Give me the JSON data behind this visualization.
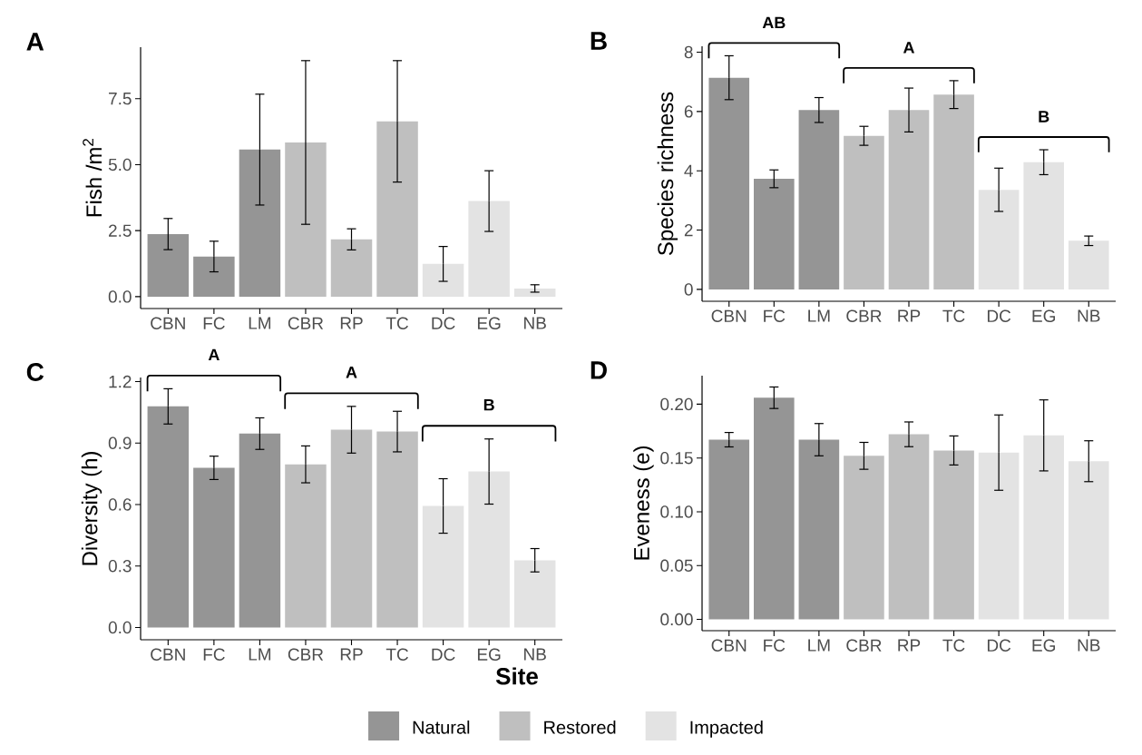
{
  "chart_data": [
    {
      "type": "bar",
      "title": "A",
      "ylabel": "Fish /m$^{2}$",
      "categories": [
        "CBN",
        "FC",
        "LM",
        "CBR",
        "RP",
        "TC",
        "DC",
        "EG",
        "NB"
      ],
      "ylim": [
        -0.45,
        9.45
      ],
      "yticks": [
        {
          "value": 0,
          "label": "0.0"
        },
        {
          "value": 2.5,
          "label": "2.5"
        },
        {
          "value": 5,
          "label": "5.0"
        },
        {
          "value": 7.5,
          "label": "7.5"
        }
      ],
      "series": [
        {
          "color": "#959595",
          "values": [
            2.37,
            1.52,
            5.57,
            null,
            null,
            null,
            null,
            null,
            null
          ],
          "errors": [
            0.59,
            0.58,
            2.1,
            null,
            null,
            null,
            null,
            null,
            null
          ]
        },
        {
          "color": "#bfbfbf",
          "values": [
            null,
            null,
            null,
            5.84,
            2.17,
            6.64,
            null,
            null,
            null
          ],
          "errors": [
            null,
            null,
            null,
            3.1,
            0.4,
            2.3,
            null,
            null,
            null
          ]
        },
        {
          "color": "#e3e3e3",
          "values": [
            null,
            null,
            null,
            null,
            null,
            null,
            1.24,
            3.62,
            0.31
          ],
          "errors": [
            null,
            null,
            null,
            null,
            null,
            null,
            0.66,
            1.15,
            0.14
          ]
        }
      ]
    },
    {
      "type": "bar",
      "title": "B",
      "ylabel": "Species richness",
      "categories": [
        "CBN",
        "FC",
        "LM",
        "CBR",
        "RP",
        "TC",
        "DC",
        "EG",
        "NB"
      ],
      "ylim": [
        -0.4,
        8.2
      ],
      "yticks": [
        0,
        2,
        4,
        6,
        8
      ],
      "annotations": [
        "AB",
        "A",
        "B"
      ],
      "series": [
        {
          "color": "#959595",
          "values": [
            7.14,
            3.73,
            6.05,
            null,
            null,
            null,
            null,
            null,
            null
          ],
          "errors": [
            0.74,
            0.3,
            0.42,
            null,
            null,
            null,
            null,
            null,
            null
          ]
        },
        {
          "color": "#bfbfbf",
          "values": [
            null,
            null,
            null,
            5.18,
            6.05,
            6.57,
            null,
            null,
            null
          ],
          "errors": [
            null,
            null,
            null,
            0.32,
            0.74,
            0.47,
            null,
            null,
            null
          ]
        },
        {
          "color": "#e3e3e3",
          "values": [
            null,
            null,
            null,
            null,
            null,
            null,
            3.36,
            4.29,
            1.64
          ],
          "errors": [
            null,
            null,
            null,
            null,
            null,
            null,
            0.73,
            0.42,
            0.16
          ]
        }
      ]
    },
    {
      "type": "bar",
      "title": "C",
      "ylabel": "Diversity (h)",
      "categories": [
        "CBN",
        "FC",
        "LM",
        "CBR",
        "RP",
        "TC",
        "DC",
        "EG",
        "NB"
      ],
      "ylim": [
        -0.06,
        1.22
      ],
      "yticks": [
        {
          "value": 0,
          "label": "0.0"
        },
        {
          "value": 0.3,
          "label": "0.3"
        },
        {
          "value": 0.6,
          "label": "0.6"
        },
        {
          "value": 0.9,
          "label": "0.9"
        },
        {
          "value": 1.2,
          "label": "1.2"
        }
      ],
      "annotations": [
        "A",
        "A",
        "B"
      ],
      "series": [
        {
          "color": "#959595",
          "values": [
            1.079,
            0.779,
            0.946,
            null,
            null,
            null,
            null,
            null,
            null
          ],
          "errors": [
            0.086,
            0.057,
            0.077,
            null,
            null,
            null,
            null,
            null,
            null
          ]
        },
        {
          "color": "#bfbfbf",
          "values": [
            null,
            null,
            null,
            0.796,
            0.965,
            0.956,
            null,
            null,
            null
          ],
          "errors": [
            null,
            null,
            null,
            0.09,
            0.114,
            0.099,
            null,
            null,
            null
          ]
        },
        {
          "color": "#e3e3e3",
          "values": [
            null,
            null,
            null,
            null,
            null,
            null,
            0.593,
            0.761,
            0.328
          ],
          "errors": [
            null,
            null,
            null,
            null,
            null,
            null,
            0.133,
            0.159,
            0.057
          ]
        }
      ]
    },
    {
      "type": "bar",
      "title": "D",
      "ylabel": "Eveness (e)",
      "xlabel": "Site",
      "legend": "bottom",
      "categories": [
        "CBN",
        "FC",
        "LM",
        "CBR",
        "RP",
        "TC",
        "DC",
        "EG",
        "NB"
      ],
      "ylim": [
        -0.0105,
        0.2265
      ],
      "yticks": [
        {
          "value": 0,
          "label": "0.00"
        },
        {
          "value": 0.05,
          "label": "0.05"
        },
        {
          "value": 0.1,
          "label": "0.10"
        },
        {
          "value": 0.15,
          "label": "0.15"
        },
        {
          "value": 0.2,
          "label": "0.20"
        }
      ],
      "series": [
        {
          "name": "Natural",
          "color": "#959595",
          "values": [
            0.167,
            0.206,
            0.167,
            null,
            null,
            null,
            null,
            null,
            null
          ],
          "errors": [
            0.0067,
            0.01,
            0.015,
            null,
            null,
            null,
            null,
            null,
            null
          ]
        },
        {
          "name": "Restored",
          "color": "#bfbfbf",
          "values": [
            null,
            null,
            null,
            0.152,
            0.172,
            0.157,
            null,
            null,
            null
          ],
          "errors": [
            null,
            null,
            null,
            0.0125,
            0.0115,
            0.0135,
            null,
            null,
            null
          ]
        },
        {
          "name": "Impacted",
          "color": "#e3e3e3",
          "values": [
            null,
            null,
            null,
            null,
            null,
            null,
            0.155,
            0.171,
            0.147
          ],
          "errors": [
            null,
            null,
            null,
            null,
            null,
            null,
            0.035,
            0.033,
            0.019
          ]
        }
      ]
    }
  ]
}
